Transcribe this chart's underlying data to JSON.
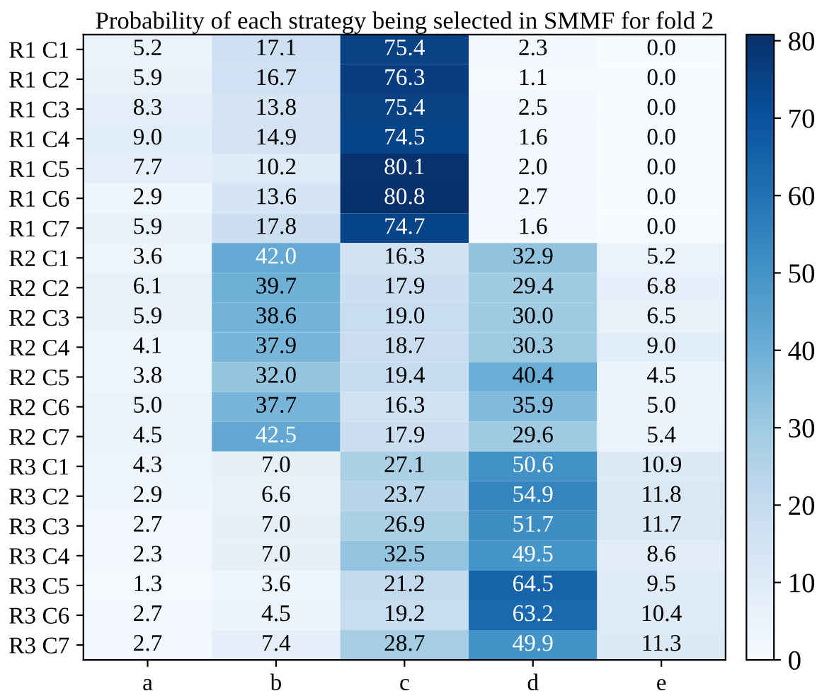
{
  "chart_data": {
    "type": "heatmap",
    "title": "Probability of each strategy being selected in SMMF for fold 2",
    "categories": [
      "a",
      "b",
      "c",
      "d",
      "e"
    ],
    "y_categories": [
      "R1 C1",
      "R1 C2",
      "R1 C3",
      "R1 C4",
      "R1 C5",
      "R1 C6",
      "R1 C7",
      "R2 C1",
      "R2 C2",
      "R2 C3",
      "R2 C4",
      "R2 C5",
      "R2 C6",
      "R2 C7",
      "R3 C1",
      "R3 C2",
      "R3 C3",
      "R3 C4",
      "R3 C5",
      "R3 C6",
      "R3 C7"
    ],
    "cells": [
      [
        5.2,
        17.1,
        75.4,
        2.3,
        0.0
      ],
      [
        5.9,
        16.7,
        76.3,
        1.1,
        0.0
      ],
      [
        8.3,
        13.8,
        75.4,
        2.5,
        0.0
      ],
      [
        9.0,
        14.9,
        74.5,
        1.6,
        0.0
      ],
      [
        7.7,
        10.2,
        80.1,
        2.0,
        0.0
      ],
      [
        2.9,
        13.6,
        80.8,
        2.7,
        0.0
      ],
      [
        5.9,
        17.8,
        74.7,
        1.6,
        0.0
      ],
      [
        3.6,
        42.0,
        16.3,
        32.9,
        5.2
      ],
      [
        6.1,
        39.7,
        17.9,
        29.4,
        6.8
      ],
      [
        5.9,
        38.6,
        19.0,
        30.0,
        6.5
      ],
      [
        4.1,
        37.9,
        18.7,
        30.3,
        9.0
      ],
      [
        3.8,
        32.0,
        19.4,
        40.4,
        4.5
      ],
      [
        5.0,
        37.7,
        16.3,
        35.9,
        5.0
      ],
      [
        4.5,
        42.5,
        17.9,
        29.6,
        5.4
      ],
      [
        4.3,
        7.0,
        27.1,
        50.6,
        10.9
      ],
      [
        2.9,
        6.6,
        23.7,
        54.9,
        11.8
      ],
      [
        2.7,
        7.0,
        26.9,
        51.7,
        11.7
      ],
      [
        2.3,
        7.0,
        32.5,
        49.5,
        8.6
      ],
      [
        1.3,
        3.6,
        21.2,
        64.5,
        9.5
      ],
      [
        2.7,
        4.5,
        19.2,
        63.2,
        10.4
      ],
      [
        2.7,
        7.4,
        28.7,
        49.9,
        11.3
      ]
    ],
    "cell_labels": [
      [
        "5.2",
        "17.1",
        "75.4",
        "2.3",
        "0.0"
      ],
      [
        "5.9",
        "16.7",
        "76.3",
        "1.1",
        "0.0"
      ],
      [
        "8.3",
        "13.8",
        "75.4",
        "2.5",
        "0.0"
      ],
      [
        "9.0",
        "14.9",
        "74.5",
        "1.6",
        "0.0"
      ],
      [
        "7.7",
        "10.2",
        "80.1",
        "2.0",
        "0.0"
      ],
      [
        "2.9",
        "13.6",
        "80.8",
        "2.7",
        "0.0"
      ],
      [
        "5.9",
        "17.8",
        "74.7",
        "1.6",
        "0.0"
      ],
      [
        "3.6",
        "42.0",
        "16.3",
        "32.9",
        "5.2"
      ],
      [
        "6.1",
        "39.7",
        "17.9",
        "29.4",
        "6.8"
      ],
      [
        "5.9",
        "38.6",
        "19.0",
        "30.0",
        "6.5"
      ],
      [
        "4.1",
        "37.9",
        "18.7",
        "30.3",
        "9.0"
      ],
      [
        "3.8",
        "32.0",
        "19.4",
        "40.4",
        "4.5"
      ],
      [
        "5.0",
        "37.7",
        "16.3",
        "35.9",
        "5.0"
      ],
      [
        "4.5",
        "42.5",
        "17.9",
        "29.6",
        "5.4"
      ],
      [
        "4.3",
        "7.0",
        "27.1",
        "50.6",
        "10.9"
      ],
      [
        "2.9",
        "6.6",
        "23.7",
        "54.9",
        "11.8"
      ],
      [
        "2.7",
        "7.0",
        "26.9",
        "51.7",
        "11.7"
      ],
      [
        "2.3",
        "7.0",
        "32.5",
        "49.5",
        "8.6"
      ],
      [
        "1.3",
        "3.6",
        "21.2",
        "64.5",
        "9.5"
      ],
      [
        "2.7",
        "4.5",
        "19.2",
        "63.2",
        "10.4"
      ],
      [
        "2.7",
        "7.4",
        "28.7",
        "49.9",
        "11.3"
      ]
    ],
    "clim": [
      0,
      80.8
    ],
    "cticks": [
      0,
      10,
      20,
      30,
      40,
      50,
      60,
      70,
      80
    ]
  }
}
